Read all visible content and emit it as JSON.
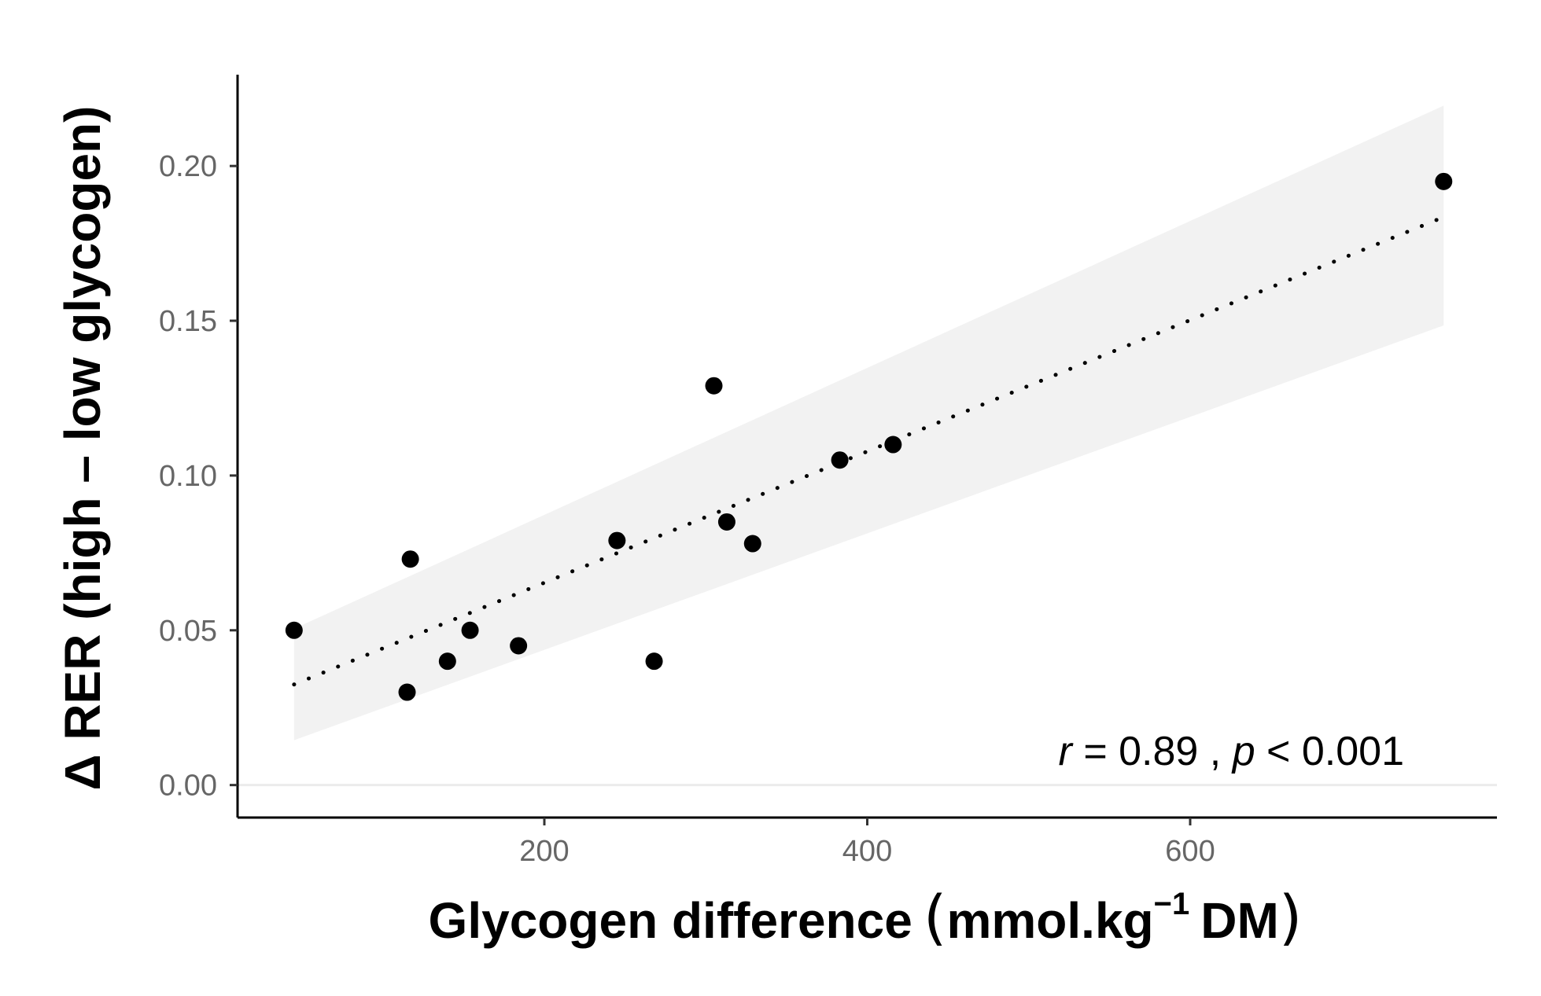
{
  "chart_data": {
    "type": "scatter",
    "title": "",
    "xlabel": {
      "main": "Glycogen difference",
      "unit_prefix": "mmol.kg",
      "unit_superscript": "−1",
      "unit_suffix": "DM"
    },
    "ylabel": "Δ RER (high – low glycogen)",
    "xlim": [
      10,
      790
    ],
    "ylim": [
      -0.0105,
      0.2295
    ],
    "x_ticks": [
      200,
      400,
      600
    ],
    "x_tick_labels": [
      "200",
      "400",
      "600"
    ],
    "y_ticks": [
      0.0,
      0.05,
      0.1,
      0.15,
      0.2
    ],
    "y_tick_labels": [
      "0.00",
      "0.05",
      "0.10",
      "0.15",
      "0.20"
    ],
    "reference_line_y": 0.0,
    "points": [
      {
        "x": 45,
        "y": 0.05
      },
      {
        "x": 115,
        "y": 0.03
      },
      {
        "x": 117,
        "y": 0.073
      },
      {
        "x": 140,
        "y": 0.04
      },
      {
        "x": 154,
        "y": 0.05
      },
      {
        "x": 184,
        "y": 0.045
      },
      {
        "x": 245,
        "y": 0.079
      },
      {
        "x": 268,
        "y": 0.04
      },
      {
        "x": 305,
        "y": 0.129
      },
      {
        "x": 313,
        "y": 0.085
      },
      {
        "x": 329,
        "y": 0.078
      },
      {
        "x": 383,
        "y": 0.105
      },
      {
        "x": 416,
        "y": 0.11
      },
      {
        "x": 757,
        "y": 0.195
      }
    ],
    "regression": {
      "style": "dotted",
      "x": [
        45,
        757
      ],
      "y": [
        0.0325,
        0.1835
      ],
      "confidence_band": {
        "x": [
          45,
          757
        ],
        "lower": [
          0.0145,
          0.1485
        ],
        "upper": [
          0.0505,
          0.2195
        ]
      }
    },
    "annotation": {
      "r_symbol": "r",
      "r_text": " = 0.89 , ",
      "p_symbol": "p",
      "p_text": " < 0.001"
    },
    "colors": {
      "points": "#000000",
      "band": "#f2f2f2",
      "axis": "#000000",
      "reference_line": "#ebebeb",
      "tick_label": "#666666"
    }
  }
}
